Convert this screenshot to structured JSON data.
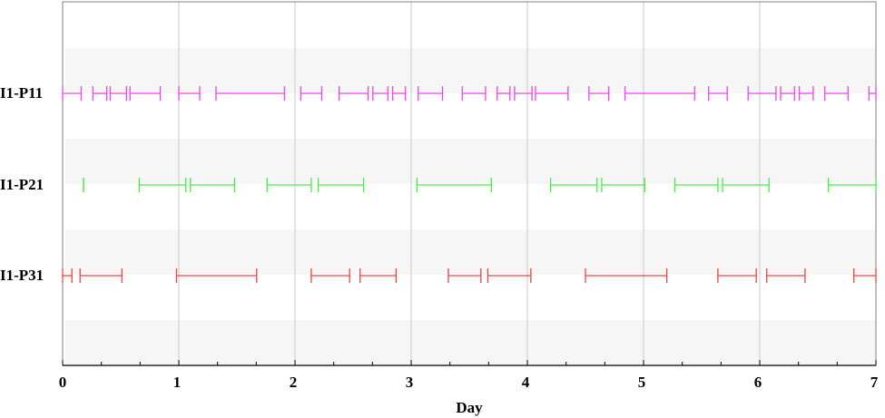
{
  "chart_data": {
    "type": "timeline",
    "xlabel": "Day",
    "xlim": [
      0,
      7
    ],
    "xticks": [
      "0",
      "1",
      "2",
      "3",
      "4",
      "5",
      "6",
      "7"
    ],
    "grid": true,
    "series": [
      {
        "name": "I1-P11",
        "color": "#ee44ee",
        "intervals": [
          [
            0.0,
            0.16
          ],
          [
            0.26,
            0.38
          ],
          [
            0.41,
            0.55
          ],
          [
            0.58,
            0.84
          ],
          [
            1.0,
            1.18
          ],
          [
            1.32,
            1.91
          ],
          [
            2.05,
            2.23
          ],
          [
            2.38,
            2.63
          ],
          [
            2.67,
            2.8
          ],
          [
            2.84,
            2.95
          ],
          [
            3.06,
            3.27
          ],
          [
            3.44,
            3.64
          ],
          [
            3.74,
            3.85
          ],
          [
            3.89,
            4.04
          ],
          [
            4.07,
            4.35
          ],
          [
            4.53,
            4.7
          ],
          [
            4.84,
            5.44
          ],
          [
            5.56,
            5.72
          ],
          [
            5.9,
            6.14
          ],
          [
            6.18,
            6.3
          ],
          [
            6.34,
            6.46
          ],
          [
            6.56,
            6.76
          ],
          [
            6.94,
            7.0
          ]
        ]
      },
      {
        "name": "I1-P21",
        "color": "#44ee44",
        "intervals": [
          [
            0.18,
            0.18
          ],
          [
            0.66,
            1.06
          ],
          [
            1.1,
            1.48
          ],
          [
            1.76,
            2.14
          ],
          [
            2.2,
            2.59
          ],
          [
            3.05,
            3.69
          ],
          [
            4.2,
            4.6
          ],
          [
            4.64,
            5.01
          ],
          [
            5.27,
            5.64
          ],
          [
            5.68,
            6.08
          ],
          [
            6.59,
            7.0
          ]
        ]
      },
      {
        "name": "I1-P31",
        "color": "#ee4444",
        "intervals": [
          [
            0.0,
            0.08
          ],
          [
            0.15,
            0.51
          ],
          [
            0.98,
            1.67
          ],
          [
            2.14,
            2.47
          ],
          [
            2.56,
            2.87
          ],
          [
            3.32,
            3.6
          ],
          [
            3.66,
            4.03
          ],
          [
            4.5,
            5.2
          ],
          [
            5.64,
            5.97
          ],
          [
            6.06,
            6.39
          ],
          [
            6.81,
            7.0
          ]
        ]
      }
    ]
  }
}
